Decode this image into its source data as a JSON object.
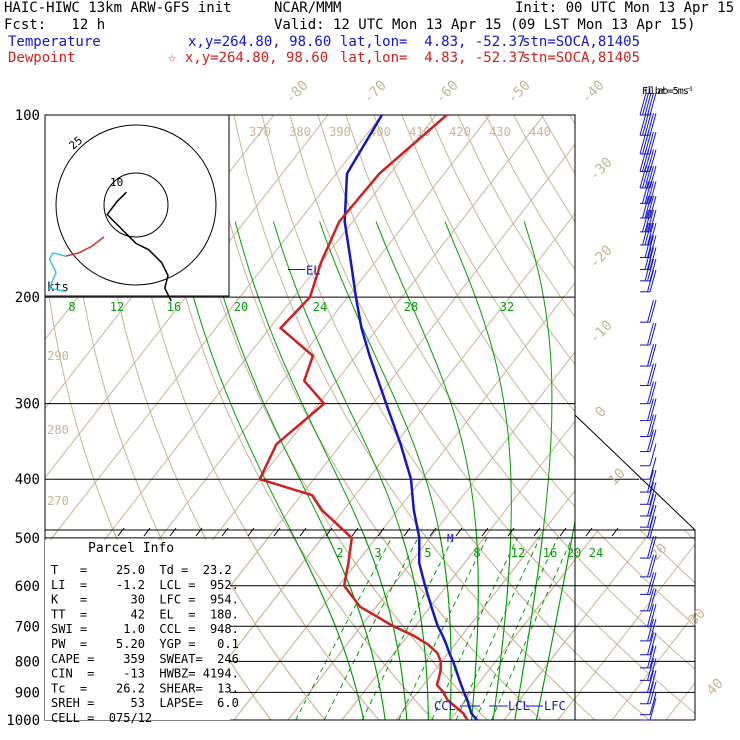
{
  "header": {
    "model": "HAIC-HIWC 13km ARW-GFS init",
    "center": "NCAR/MMM",
    "init": "Init: 00 UTC Mon 13 Apr 15",
    "fcst": "Fcst:   12 h",
    "valid": "Valid: 12 UTC Mon 13 Apr 15 (09 LST Mon 13 Apr 15)",
    "temperature_label": "Temperature",
    "dewpoint_label": "Dewpoint",
    "temp_xy": "x,y=264.80, 98.60",
    "dew_xy": "☆ x,y=264.80, 98.60",
    "latlon": "lat,lon=  4.83, -52.37",
    "station": "stn=SOCA,81405"
  },
  "colors": {
    "temperature": "#1414c8",
    "dewpoint": "#d21e1e",
    "isotherm": "#c8b496",
    "dry_adiabat": "#c8b496",
    "moist_adiabat": "#00a000",
    "mixing_ratio": "#00a000",
    "isobar": "#000000",
    "hodograph_inner": "#000000",
    "hodograph_low": "#e03030",
    "hodograph_mid": "#40c0e0"
  },
  "chart_data": {
    "type": "skew-t log-p",
    "pressure_labels": [
      "100",
      "200",
      "300",
      "400",
      "500",
      "600",
      "700",
      "800",
      "900",
      "1000"
    ],
    "isotherm_labels": [
      "-80",
      "-70",
      "-60",
      "-50",
      "-40",
      "-30",
      "-20",
      "-10",
      "0",
      "10",
      "20",
      "30",
      "40"
    ],
    "theta_labels_top": [
      "370",
      "380",
      "390",
      "400",
      "410",
      "420",
      "430",
      "440"
    ],
    "theta_labels_left": [
      "290",
      "280",
      "270"
    ],
    "moist_adiabat_labels": [
      "8",
      "12",
      "16",
      "20",
      "24",
      "28",
      "32"
    ],
    "mixing_ratio_labels": [
      "2",
      "3",
      "5",
      "8",
      "12",
      "16",
      "20",
      "24"
    ],
    "temperature_profile": {
      "name": "Temperature",
      "p": [
        1000,
        975,
        950,
        925,
        900,
        875,
        850,
        825,
        800,
        775,
        750,
        725,
        700,
        650,
        600,
        550,
        500,
        450,
        400,
        350,
        300,
        250,
        225,
        200,
        175,
        150,
        125,
        100
      ],
      "t": [
        25.0,
        23.0,
        21.6,
        20.2,
        18.6,
        17.0,
        15.4,
        13.8,
        12.1,
        10.2,
        8.4,
        6.4,
        4.2,
        0.2,
        -4.0,
        -8.4,
        -12.0,
        -17.0,
        -22.0,
        -29.0,
        -37.5,
        -47.5,
        -53.0,
        -58.5,
        -64.5,
        -71.5,
        -78.0,
        -80.0
      ]
    },
    "dewpoint_profile": {
      "name": "Dewpoint",
      "p": [
        1000,
        975,
        950,
        925,
        900,
        875,
        850,
        825,
        800,
        775,
        750,
        725,
        700,
        650,
        600,
        550,
        500,
        450,
        425,
        400,
        350,
        300,
        275,
        250,
        225,
        200,
        175,
        150,
        125,
        100
      ],
      "td": [
        23.2,
        21.5,
        19.0,
        16.5,
        14.8,
        12.5,
        11.8,
        11.0,
        9.8,
        8.0,
        5.0,
        1.0,
        -4.0,
        -13.0,
        -19.0,
        -21.5,
        -24.5,
        -34.0,
        -38.0,
        -50.0,
        -52.0,
        -49.0,
        -56.0,
        -58.0,
        -68.0,
        -67.0,
        -70.0,
        -72.5,
        -72.0,
        -68.0
      ]
    },
    "level_markers": [
      {
        "label": "EL",
        "p": 180
      },
      {
        "label": "CCL",
        "p": 948
      },
      {
        "label": "LCL",
        "p": 952
      },
      {
        "label": "LFC",
        "p": 954
      },
      {
        "label": "M",
        "p": 500
      }
    ],
    "parcel_info": {
      "title": "Parcel Info",
      "rows": [
        "T   =    25.0  Td =  23.2",
        "LI  =    -1.2  LCL =  952.",
        "K   =      30  LFC =  954.",
        "TT  =      42  EL  =  180.",
        "SWI =     1.0  CCL =  948.",
        "PW  =    5.20  YGP =   0.1",
        "CAPE =    359  SWEAT=  246",
        "CIN  =    -13  HWBZ= 4194.",
        "Tc  =    26.2  SHEAR=  13.",
        "SREH =     53  LAPSE=  6.0",
        "CELL =  075/12"
      ]
    },
    "hodograph": {
      "ring_labels": [
        "25",
        "10"
      ],
      "unit": "kts",
      "inner_u": [
        -3,
        -6,
        -9,
        -5,
        0,
        4,
        8,
        10,
        9,
        11
      ],
      "inner_v": [
        4,
        1,
        -3,
        -7,
        -12,
        -14,
        -18,
        -22,
        -26,
        -30
      ],
      "low_u": [
        -10,
        -14,
        -18,
        -22
      ],
      "low_v": [
        -10,
        -13,
        -15,
        -16
      ],
      "mid_u": [
        -22,
        -26,
        -27,
        -25,
        -27,
        -22
      ],
      "mid_v": [
        -16,
        -15,
        -17,
        -21,
        -26,
        -27
      ]
    },
    "barb_header": "Full barb = 5 m s⁻¹",
    "wind_profile": {
      "p": [
        100,
        108,
        116,
        124,
        132,
        140,
        148,
        156,
        164,
        172,
        180,
        188,
        196,
        220,
        240,
        260,
        280,
        300,
        320,
        340,
        360,
        380,
        400,
        420,
        440,
        460,
        480,
        500,
        540,
        580,
        620,
        660,
        700,
        740,
        780,
        820,
        860,
        900,
        940,
        980,
        1000
      ],
      "spd_ms": [
        25,
        25,
        25,
        25,
        25,
        22,
        22,
        20,
        20,
        15,
        15,
        15,
        12,
        12,
        10,
        10,
        10,
        10,
        8,
        8,
        8,
        5,
        5,
        8,
        8,
        10,
        10,
        10,
        8,
        8,
        8,
        8,
        10,
        10,
        10,
        10,
        10,
        8,
        8,
        5,
        5
      ]
    }
  }
}
